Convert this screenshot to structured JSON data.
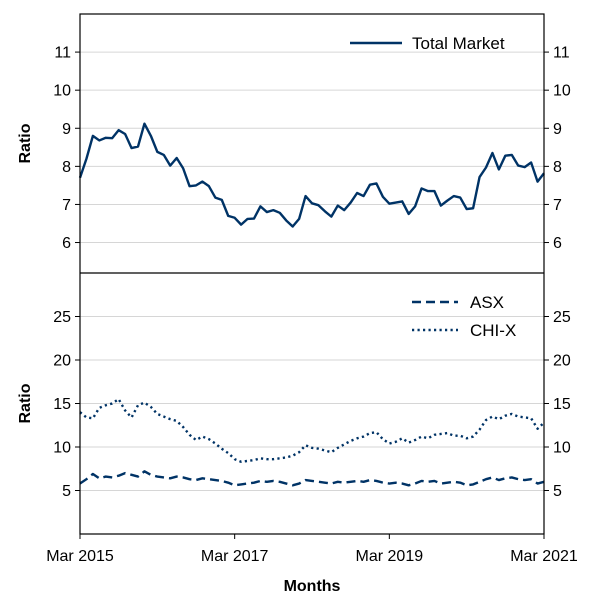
{
  "chart_data": [
    {
      "type": "line",
      "panel": "top",
      "ylabel": "Ratio",
      "ylim": [
        5.2,
        12.0
      ],
      "yticks": [
        "6",
        "7",
        "8",
        "9",
        "10",
        "11"
      ],
      "grid": "horizontal",
      "legend_position": "top-right",
      "x_start": "Mar 2015",
      "x_end": "Mar 2021",
      "series": [
        {
          "name": "Total Market",
          "style": "solid",
          "color": "#003366",
          "values": [
            7.7,
            8.2,
            8.8,
            8.68,
            8.75,
            8.74,
            8.95,
            8.85,
            8.48,
            8.52,
            9.12,
            8.8,
            8.38,
            8.3,
            8.02,
            8.22,
            7.95,
            7.48,
            7.5,
            7.6,
            7.48,
            7.18,
            7.12,
            6.7,
            6.65,
            6.47,
            6.62,
            6.63,
            6.95,
            6.8,
            6.85,
            6.78,
            6.58,
            6.42,
            6.62,
            7.22,
            7.03,
            6.98,
            6.82,
            6.68,
            6.97,
            6.85,
            7.05,
            7.3,
            7.22,
            7.52,
            7.55,
            7.2,
            7.02,
            7.05,
            7.08,
            6.75,
            6.95,
            7.42,
            7.35,
            7.35,
            6.97,
            7.1,
            7.22,
            7.18,
            6.88,
            6.9,
            7.72,
            7.97,
            8.35,
            7.92,
            8.28,
            8.3,
            8.02,
            7.98,
            8.1,
            7.6,
            7.82
          ]
        }
      ]
    },
    {
      "type": "line",
      "panel": "bottom",
      "ylabel": "Ratio",
      "xlabel": "Months",
      "ylim": [
        0,
        30
      ],
      "yticks": [
        "5",
        "10",
        "15",
        "20",
        "25"
      ],
      "xticks": [
        "Mar 2015",
        "Mar 2017",
        "Mar 2019",
        "Mar 2021"
      ],
      "grid": "horizontal",
      "legend_position": "top-right",
      "series": [
        {
          "name": "ASX",
          "style": "dashed",
          "color": "#003366",
          "values": [
            5.8,
            6.3,
            6.9,
            6.4,
            6.6,
            6.5,
            6.7,
            7.0,
            6.8,
            6.6,
            7.2,
            6.8,
            6.6,
            6.5,
            6.4,
            6.6,
            6.5,
            6.3,
            6.2,
            6.4,
            6.3,
            6.2,
            6.1,
            5.9,
            5.6,
            5.7,
            5.8,
            5.9,
            6.1,
            6.0,
            6.1,
            6.0,
            5.8,
            5.6,
            5.8,
            6.2,
            6.1,
            6.0,
            5.9,
            5.8,
            6.0,
            5.9,
            6.0,
            6.1,
            6.0,
            6.2,
            6.1,
            5.9,
            5.8,
            5.9,
            5.8,
            5.6,
            5.8,
            6.1,
            6.0,
            6.1,
            5.8,
            5.9,
            6.0,
            5.9,
            5.6,
            5.7,
            6.0,
            6.3,
            6.5,
            6.2,
            6.4,
            6.5,
            6.3,
            6.2,
            6.3,
            5.8,
            6.0
          ]
        },
        {
          "name": "CHI-X",
          "style": "dotted",
          "color": "#003366",
          "values": [
            14.0,
            13.4,
            13.3,
            14.5,
            14.8,
            15.0,
            15.5,
            14.2,
            13.4,
            14.8,
            15.1,
            14.6,
            13.8,
            13.5,
            13.2,
            13.0,
            12.3,
            11.4,
            10.8,
            11.2,
            10.9,
            10.4,
            9.8,
            9.3,
            8.6,
            8.3,
            8.4,
            8.5,
            8.7,
            8.6,
            8.6,
            8.7,
            8.8,
            9.0,
            9.4,
            10.2,
            9.9,
            9.8,
            9.6,
            9.4,
            9.9,
            10.3,
            10.7,
            11.0,
            11.2,
            11.6,
            11.7,
            10.9,
            10.4,
            10.6,
            11.0,
            10.5,
            10.8,
            11.2,
            11.0,
            11.4,
            11.5,
            11.6,
            11.3,
            11.3,
            11.0,
            11.2,
            12.0,
            13.1,
            13.5,
            13.2,
            13.6,
            13.8,
            13.5,
            13.4,
            13.3,
            12.1,
            12.8
          ]
        }
      ]
    }
  ]
}
